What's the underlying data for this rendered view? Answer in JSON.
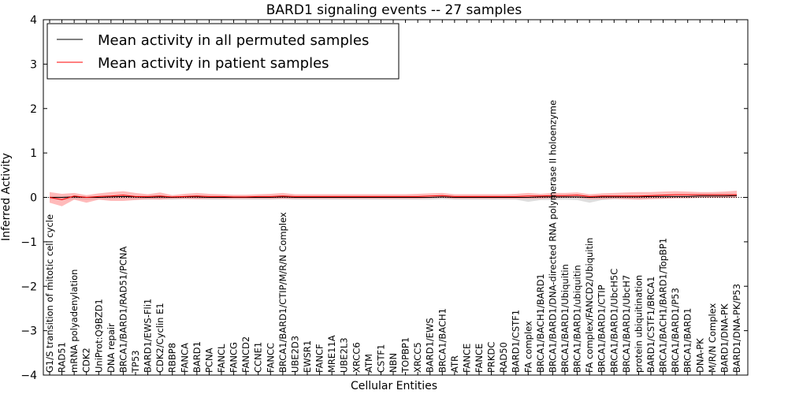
{
  "chart_data": {
    "type": "line",
    "title": "BARD1 signaling events -- 27 samples",
    "xlabel": "Cellular Entities",
    "ylabel": "Inferred Activity",
    "ylim": [
      -4,
      4
    ],
    "yticks": [
      -4,
      -3,
      -2,
      -1,
      0,
      1,
      2,
      3,
      4
    ],
    "ytick_labels": [
      "−4",
      "−3",
      "−2",
      "−1",
      "0",
      "1",
      "2",
      "3",
      "4"
    ],
    "legend_position": "top-left",
    "colors": {
      "permuted_line": "#000000",
      "patient_line": "#ff0000",
      "patient_band": "#ff6666",
      "permuted_band": "#c8c8c8",
      "zero_line": "#000000"
    },
    "categories": [
      "G1/S transition of mitotic cell cycle",
      "RAD51",
      "mRNA polyadenylation",
      "CDK2",
      "UniProt:Q9BZD1",
      "DNA repair",
      "BRCA1/BARD1/RAD51/PCNA",
      "TP53",
      "BARD1/EWS-Fli1",
      "CDK2/Cyclin E1",
      "RBBP8",
      "FANCA",
      "BARD1",
      "PCNA",
      "FANCL",
      "FANCG",
      "FANCD2",
      "CCNE1",
      "FANCC",
      "BRCA1/BARD1/CTIP/M/R/N Complex",
      "UBE2D3",
      "EWSR1",
      "FANCF",
      "MRE11A",
      "UBE2L3",
      "XRCC6",
      "ATM",
      "CSTF1",
      "NBN",
      "TOPBP1",
      "XRCC5",
      "BARD1/EWS",
      "BRCA1/BACH1",
      "ATR",
      "FANCE",
      "FANCE",
      "PRKDC",
      "RAD50",
      "BARD1/CSTF1",
      "FA complex",
      "BRCA1/BACH1/BARD1",
      "BRCA1/BARD1/DNA-directed RNA polymerase II holoenzyme",
      "BRCA1/BARD1/Ubiquitin",
      "BRCA1/BARD1/ubiquitin",
      "FA complex/FANCD2/Ubiquitin",
      "BRCA1/BARD1/CTIP",
      "BRCA1/BARD1/UbcH5C",
      "BRCA1/BARD1/UbcH7",
      "protein ubiquitination",
      "BARD1/CSTF1/BRCA1",
      "BRCA1/BACH1/BARD1/TopBP1",
      "BRCA1/BARD1/P53",
      "BRCA1/BARD1",
      "DNA-PK",
      "M/R/N Complex",
      "BARD1/DNA-PK",
      "BARD1/DNA-PK/P53"
    ],
    "series": [
      {
        "name": "Mean activity in all permuted samples",
        "color": "#000000",
        "values": [
          0.0,
          0.0,
          0.01,
          0.0,
          0.0,
          0.01,
          0.02,
          0.01,
          0.0,
          0.01,
          0.0,
          0.01,
          0.01,
          0.0,
          0.0,
          0.0,
          0.0,
          0.0,
          0.0,
          0.01,
          0.0,
          0.0,
          0.0,
          0.0,
          0.0,
          0.0,
          0.0,
          0.0,
          0.0,
          0.0,
          0.0,
          0.0,
          0.01,
          0.0,
          0.0,
          0.0,
          0.0,
          0.0,
          0.0,
          0.0,
          0.01,
          0.01,
          0.01,
          0.01,
          0.0,
          0.01,
          0.01,
          0.01,
          0.01,
          0.02,
          0.02,
          0.02,
          0.02,
          0.03,
          0.03,
          0.03,
          0.04
        ],
        "band_upper": [
          0.03,
          0.02,
          0.03,
          0.02,
          0.02,
          0.03,
          0.04,
          0.03,
          0.02,
          0.03,
          0.02,
          0.03,
          0.03,
          0.02,
          0.02,
          0.02,
          0.02,
          0.02,
          0.02,
          0.03,
          0.02,
          0.02,
          0.02,
          0.02,
          0.02,
          0.02,
          0.02,
          0.02,
          0.02,
          0.02,
          0.02,
          0.02,
          0.03,
          0.02,
          0.02,
          0.02,
          0.02,
          0.02,
          0.02,
          0.02,
          0.03,
          0.03,
          0.03,
          0.03,
          0.02,
          0.03,
          0.03,
          0.03,
          0.03,
          0.04,
          0.04,
          0.04,
          0.04,
          0.05,
          0.05,
          0.05,
          0.06
        ],
        "band_lower": [
          -0.04,
          -0.06,
          -0.04,
          -0.05,
          -0.04,
          -0.04,
          -0.03,
          -0.04,
          -0.05,
          -0.04,
          -0.05,
          -0.04,
          -0.04,
          -0.05,
          -0.05,
          -0.05,
          -0.05,
          -0.05,
          -0.05,
          -0.04,
          -0.05,
          -0.05,
          -0.05,
          -0.05,
          -0.05,
          -0.05,
          -0.05,
          -0.05,
          -0.05,
          -0.05,
          -0.05,
          -0.05,
          -0.04,
          -0.05,
          -0.05,
          -0.05,
          -0.05,
          -0.05,
          -0.05,
          -0.1,
          -0.06,
          -0.06,
          -0.05,
          -0.06,
          -0.12,
          -0.06,
          -0.04,
          -0.04,
          -0.04,
          -0.03,
          -0.03,
          -0.02,
          -0.02,
          -0.01,
          -0.01,
          -0.01,
          -0.01
        ]
      },
      {
        "name": "Mean activity in patient samples",
        "color": "#ff0000",
        "values": [
          0.0,
          -0.05,
          0.03,
          0.0,
          0.02,
          0.03,
          0.05,
          0.02,
          0.02,
          0.03,
          0.01,
          0.02,
          0.03,
          0.02,
          0.02,
          0.01,
          0.01,
          0.02,
          0.02,
          0.03,
          0.02,
          0.02,
          0.02,
          0.02,
          0.02,
          0.02,
          0.02,
          0.02,
          0.02,
          0.02,
          0.02,
          0.03,
          0.04,
          0.02,
          0.02,
          0.02,
          0.02,
          0.02,
          0.02,
          0.03,
          0.03,
          0.04,
          0.04,
          0.05,
          0.02,
          0.03,
          0.03,
          0.03,
          0.03,
          0.04,
          0.05,
          0.06,
          0.06,
          0.06,
          0.06,
          0.06,
          0.06
        ],
        "band_upper": [
          0.12,
          0.08,
          0.1,
          0.05,
          0.09,
          0.12,
          0.14,
          0.1,
          0.07,
          0.11,
          0.05,
          0.08,
          0.1,
          0.08,
          0.07,
          0.06,
          0.06,
          0.07,
          0.08,
          0.1,
          0.07,
          0.07,
          0.07,
          0.07,
          0.07,
          0.07,
          0.07,
          0.07,
          0.07,
          0.07,
          0.08,
          0.09,
          0.1,
          0.07,
          0.07,
          0.07,
          0.07,
          0.07,
          0.08,
          0.1,
          0.08,
          0.1,
          0.1,
          0.11,
          0.07,
          0.09,
          0.1,
          0.11,
          0.12,
          0.12,
          0.13,
          0.14,
          0.13,
          0.12,
          0.12,
          0.13,
          0.15
        ],
        "band_lower": [
          -0.12,
          -0.2,
          -0.05,
          -0.12,
          -0.05,
          -0.08,
          -0.08,
          -0.06,
          -0.04,
          -0.05,
          -0.03,
          -0.03,
          -0.04,
          -0.03,
          -0.03,
          -0.03,
          -0.03,
          -0.03,
          -0.03,
          -0.03,
          -0.03,
          -0.03,
          -0.03,
          -0.03,
          -0.03,
          -0.03,
          -0.03,
          -0.03,
          -0.03,
          -0.03,
          -0.03,
          -0.02,
          -0.01,
          -0.03,
          -0.03,
          -0.03,
          -0.03,
          -0.03,
          -0.03,
          -0.03,
          -0.03,
          -0.02,
          -0.01,
          -0.01,
          -0.04,
          -0.04,
          -0.03,
          -0.04,
          -0.05,
          -0.04,
          -0.03,
          -0.02,
          -0.02,
          -0.01,
          -0.01,
          -0.01,
          -0.01
        ]
      }
    ]
  }
}
